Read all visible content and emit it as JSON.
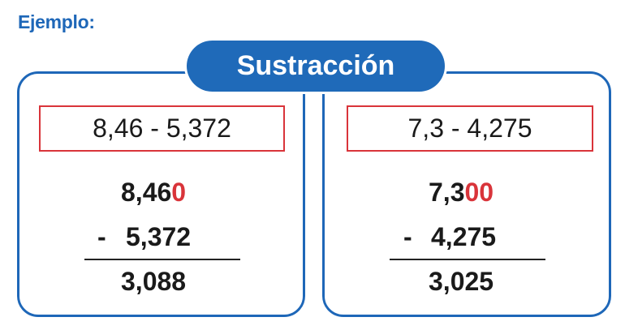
{
  "heading": "Ejemplo:",
  "pill_title": "Sustracción",
  "left": {
    "expression": "8,46 - 5,372",
    "minuend_base": "8,46",
    "minuend_added_zeros": "0",
    "minus_sign": "-",
    "subtrahend": "5,372",
    "result": "3,088"
  },
  "right": {
    "expression": "7,3 - 4,275",
    "minuend_base": "7,3",
    "minuend_added_zeros": "00",
    "minus_sign": "-",
    "subtrahend": "4,275",
    "result": "3,025"
  },
  "colors": {
    "blue": "#1e67b8",
    "red": "#d9343a"
  }
}
